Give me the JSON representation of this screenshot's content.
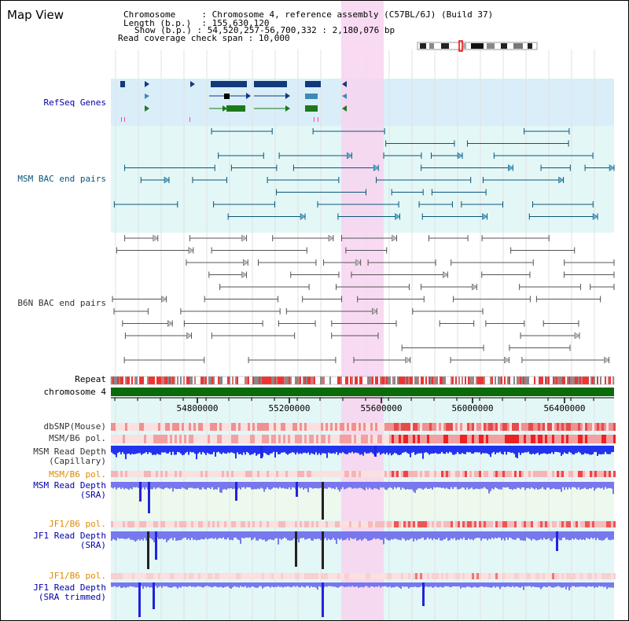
{
  "page": {
    "title": "Map View"
  },
  "info": {
    "chromosome_label": "Chromosome",
    "chromosome_value": "Chromosome 4, reference assembly (C57BL/6J) (Build 37)",
    "length_label": "Length (b.p.)",
    "length_value": "155,630,120",
    "show_label": "Show (b.p.)",
    "show_value": "54,520,257-56,700,332 : 2,180,076 bp",
    "coverage_label": "Read coverage check span",
    "coverage_value": "10,000"
  },
  "tracks": {
    "refseq": "RefSeq Genes",
    "msm_bac": "MSM BAC end pairs",
    "b6n_bac": "B6N BAC end pairs",
    "repeat": "Repeat",
    "chromosome": "chromosome 4",
    "dbsnp": "dbSNP(Mouse)",
    "msm_b6_pol_1": "MSM/B6 pol.",
    "msm_depth_cap_1": "MSM Read Depth",
    "msm_depth_cap_2": "(Capillary)",
    "msm_b6_pol_2": "MSM/B6 pol.",
    "msm_depth_sra_1": "MSM Read Depth",
    "msm_depth_sra_2": "(SRA)",
    "jf1_b6_pol_1": "JF1/B6 pol.",
    "jf1_depth_sra_1": "JF1 Read Depth",
    "jf1_depth_sra_2": "(SRA)",
    "jf1_b6_pol_2": "JF1/B6 pol.",
    "jf1_depth_trim_1": "JF1 Read Depth",
    "jf1_depth_trim_2": "(SRA trimmed)"
  },
  "axis": {
    "ticks": [
      "54800000",
      "55200000",
      "55600000",
      "56000000",
      "56400000"
    ]
  },
  "colors": {
    "highlight": "#f7d4f0",
    "refseq_bg": "#d9eef8",
    "track_bg": "#e3f7f7",
    "depth_blue": "#2222dd",
    "depth_light": "#7777ee",
    "chrom_green": "#0b6b0b",
    "snp_red": "#ee6666"
  }
}
